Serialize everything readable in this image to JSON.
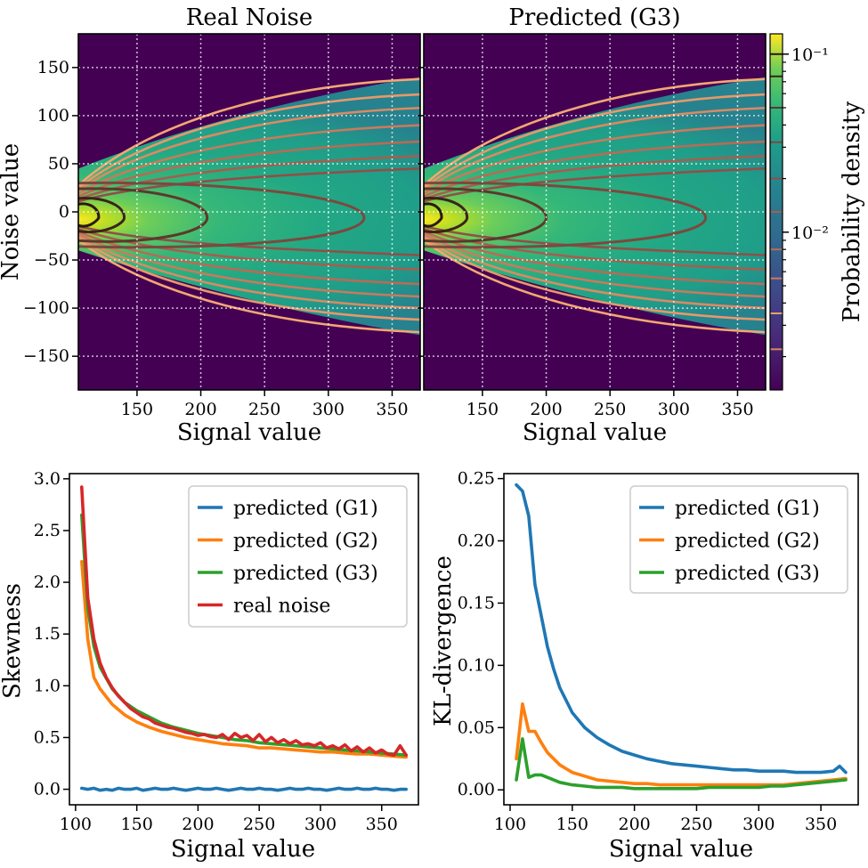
{
  "chart_data": [
    {
      "type": "heatmap",
      "title": "Real Noise",
      "xlabel": "Signal value",
      "ylabel": "Noise value",
      "xlim": [
        104,
        372
      ],
      "ylim": [
        -185,
        185
      ],
      "xticks": [
        150,
        200,
        250,
        300,
        350
      ],
      "yticks": [
        150,
        100,
        50,
        0,
        -50,
        -100,
        -150
      ],
      "ytick_labels": [
        "150",
        "100",
        "50",
        "0",
        "−50",
        "−100",
        "−150"
      ],
      "grid": true,
      "description_colormap": "viridis (log)",
      "contours": {
        "inner_ellipses_right_x": [
          120,
          140,
          205,
          328
        ],
        "upper_y_at_right": [
          138,
          122,
          108,
          90,
          73,
          58,
          45
        ],
        "lower_y_at_right": [
          -125,
          -112,
          -100,
          -88,
          -75,
          -60,
          -45
        ]
      }
    },
    {
      "type": "heatmap",
      "title": "Predicted (G3)",
      "xlabel": "Signal value",
      "ylabel": "",
      "xlim": [
        104,
        372
      ],
      "ylim": [
        -185,
        185
      ],
      "xticks": [
        150,
        200,
        250,
        300,
        350
      ],
      "grid": true,
      "colorbar": {
        "label": "Probability density",
        "scale": "log",
        "tick_labels": [
          "10⁻¹",
          "10⁻²"
        ],
        "tick_values": [
          0.1,
          0.01
        ]
      },
      "contours": {
        "inner_ellipses_right_x": [
          118,
          138,
          200,
          325
        ],
        "upper_y_at_right": [
          138,
          122,
          108,
          90,
          73,
          58,
          45
        ],
        "lower_y_at_right": [
          -125,
          -112,
          -100,
          -88,
          -75,
          -60,
          -45
        ]
      }
    },
    {
      "type": "line",
      "xlabel": "Signal value",
      "ylabel": "Skewness",
      "xlim": [
        95,
        380
      ],
      "ylim": [
        -0.15,
        3.05
      ],
      "xticks": [
        100,
        150,
        200,
        250,
        300,
        350
      ],
      "yticks": [
        0.0,
        0.5,
        1.0,
        1.5,
        2.0,
        2.5,
        3.0
      ],
      "ytick_labels": [
        "0.0",
        "0.5",
        "1.0",
        "1.5",
        "2.0",
        "2.5",
        "3.0"
      ],
      "legend": "top-right",
      "series": [
        {
          "name": "predicted (G1)",
          "color": "#1f77b4",
          "x": [
            105,
            110,
            115,
            120,
            125,
            130,
            135,
            140,
            145,
            150,
            155,
            160,
            165,
            170,
            175,
            180,
            185,
            190,
            195,
            200,
            205,
            210,
            215,
            220,
            225,
            230,
            235,
            240,
            245,
            250,
            255,
            260,
            265,
            270,
            275,
            280,
            285,
            290,
            295,
            300,
            305,
            310,
            315,
            320,
            325,
            330,
            335,
            340,
            345,
            350,
            355,
            360,
            365,
            370
          ],
          "y": [
            0.01,
            0.0,
            0.01,
            -0.01,
            0.0,
            -0.01,
            0.01,
            0.0,
            0.0,
            0.01,
            -0.01,
            0.0,
            0.01,
            0.0,
            0.0,
            0.01,
            0.0,
            -0.01,
            0.0,
            0.01,
            0.0,
            0.0,
            0.01,
            0.0,
            -0.01,
            0.0,
            0.01,
            0.0,
            0.0,
            0.01,
            0.0,
            0.0,
            -0.01,
            0.0,
            0.01,
            0.0,
            0.0,
            0.01,
            0.0,
            0.0,
            -0.01,
            0.0,
            0.01,
            0.0,
            0.0,
            0.01,
            0.0,
            0.0,
            0.01,
            0.0,
            0.0,
            -0.01,
            0.0,
            0.0
          ]
        },
        {
          "name": "predicted (G2)",
          "color": "#ff7f0e",
          "x": [
            105,
            110,
            115,
            120,
            130,
            140,
            150,
            160,
            170,
            180,
            190,
            200,
            210,
            220,
            230,
            240,
            250,
            260,
            270,
            280,
            290,
            300,
            310,
            320,
            330,
            340,
            350,
            360,
            370
          ],
          "y": [
            2.2,
            1.45,
            1.08,
            0.97,
            0.82,
            0.72,
            0.65,
            0.6,
            0.56,
            0.53,
            0.5,
            0.48,
            0.46,
            0.44,
            0.43,
            0.42,
            0.4,
            0.4,
            0.39,
            0.38,
            0.37,
            0.36,
            0.36,
            0.35,
            0.34,
            0.34,
            0.33,
            0.32,
            0.31
          ]
        },
        {
          "name": "predicted (G3)",
          "color": "#2ca02c",
          "x": [
            105,
            110,
            115,
            120,
            130,
            140,
            150,
            160,
            170,
            180,
            190,
            200,
            210,
            220,
            230,
            240,
            250,
            260,
            270,
            280,
            290,
            300,
            310,
            320,
            330,
            340,
            350,
            360,
            370
          ],
          "y": [
            2.65,
            1.75,
            1.38,
            1.18,
            0.97,
            0.84,
            0.76,
            0.7,
            0.64,
            0.6,
            0.57,
            0.54,
            0.52,
            0.5,
            0.48,
            0.47,
            0.45,
            0.44,
            0.43,
            0.42,
            0.41,
            0.4,
            0.39,
            0.38,
            0.37,
            0.36,
            0.35,
            0.34,
            0.33
          ]
        },
        {
          "name": "real noise",
          "color": "#d62728",
          "x": [
            105,
            110,
            115,
            120,
            125,
            130,
            135,
            140,
            145,
            150,
            155,
            160,
            165,
            170,
            175,
            180,
            185,
            190,
            195,
            200,
            205,
            210,
            215,
            220,
            225,
            230,
            235,
            240,
            245,
            250,
            255,
            260,
            265,
            270,
            275,
            280,
            285,
            290,
            295,
            300,
            305,
            310,
            315,
            320,
            325,
            330,
            335,
            340,
            345,
            350,
            355,
            360,
            365,
            370
          ],
          "y": [
            2.92,
            1.85,
            1.45,
            1.22,
            1.08,
            0.98,
            0.9,
            0.84,
            0.78,
            0.74,
            0.7,
            0.68,
            0.64,
            0.62,
            0.6,
            0.59,
            0.57,
            0.55,
            0.54,
            0.52,
            0.53,
            0.51,
            0.5,
            0.53,
            0.48,
            0.54,
            0.5,
            0.52,
            0.47,
            0.53,
            0.46,
            0.5,
            0.45,
            0.48,
            0.44,
            0.47,
            0.43,
            0.44,
            0.42,
            0.45,
            0.4,
            0.42,
            0.39,
            0.43,
            0.37,
            0.41,
            0.36,
            0.4,
            0.35,
            0.38,
            0.34,
            0.33,
            0.42,
            0.33
          ]
        }
      ]
    },
    {
      "type": "line",
      "xlabel": "Signal value",
      "ylabel": "KL-divergence",
      "xlim": [
        95,
        380
      ],
      "ylim": [
        -0.012,
        0.254
      ],
      "xticks": [
        100,
        150,
        200,
        250,
        300,
        350
      ],
      "yticks": [
        0.0,
        0.05,
        0.1,
        0.15,
        0.2,
        0.25
      ],
      "ytick_labels": [
        "0.00",
        "0.05",
        "0.10",
        "0.15",
        "0.20",
        "0.25"
      ],
      "legend": "top-right",
      "series": [
        {
          "name": "predicted (G1)",
          "color": "#1f77b4",
          "x": [
            105,
            110,
            115,
            120,
            125,
            130,
            135,
            140,
            150,
            160,
            170,
            180,
            190,
            200,
            210,
            220,
            230,
            240,
            250,
            260,
            270,
            280,
            290,
            300,
            310,
            320,
            330,
            340,
            350,
            360,
            365,
            370
          ],
          "y": [
            0.245,
            0.24,
            0.22,
            0.165,
            0.14,
            0.115,
            0.097,
            0.082,
            0.062,
            0.05,
            0.042,
            0.036,
            0.031,
            0.028,
            0.025,
            0.023,
            0.021,
            0.02,
            0.019,
            0.018,
            0.017,
            0.016,
            0.016,
            0.015,
            0.015,
            0.015,
            0.014,
            0.014,
            0.014,
            0.015,
            0.019,
            0.014
          ]
        },
        {
          "name": "predicted (G2)",
          "color": "#ff7f0e",
          "x": [
            105,
            110,
            115,
            120,
            125,
            130,
            140,
            150,
            160,
            170,
            180,
            190,
            200,
            210,
            220,
            230,
            240,
            250,
            260,
            270,
            280,
            290,
            300,
            310,
            320,
            330,
            340,
            350,
            360,
            370
          ],
          "y": [
            0.025,
            0.069,
            0.047,
            0.047,
            0.038,
            0.03,
            0.02,
            0.014,
            0.011,
            0.008,
            0.007,
            0.006,
            0.005,
            0.005,
            0.004,
            0.004,
            0.004,
            0.004,
            0.004,
            0.004,
            0.004,
            0.004,
            0.004,
            0.004,
            0.004,
            0.005,
            0.006,
            0.007,
            0.008,
            0.009
          ]
        },
        {
          "name": "predicted (G3)",
          "color": "#2ca02c",
          "x": [
            105,
            110,
            115,
            120,
            125,
            130,
            140,
            150,
            160,
            170,
            180,
            190,
            200,
            210,
            220,
            230,
            240,
            250,
            260,
            270,
            280,
            290,
            300,
            310,
            320,
            330,
            340,
            350,
            360,
            370
          ],
          "y": [
            0.008,
            0.041,
            0.01,
            0.012,
            0.012,
            0.01,
            0.006,
            0.004,
            0.003,
            0.002,
            0.002,
            0.002,
            0.001,
            0.001,
            0.001,
            0.001,
            0.001,
            0.001,
            0.002,
            0.002,
            0.002,
            0.002,
            0.002,
            0.003,
            0.003,
            0.004,
            0.005,
            0.006,
            0.007,
            0.008
          ]
        }
      ]
    }
  ]
}
